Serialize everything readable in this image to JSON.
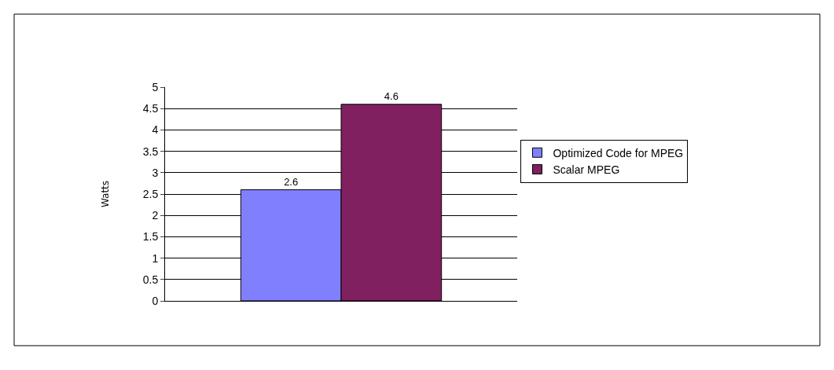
{
  "chart_data": {
    "type": "bar",
    "categories": [
      null
    ],
    "ylabel": "Watts",
    "series": [
      {
        "name": "Optimized Code for MPEG",
        "color": "#8080ff",
        "values": [
          2.6
        ]
      },
      {
        "name": "Scalar MPEG",
        "color": "#802060",
        "values": [
          4.6
        ]
      }
    ],
    "ylim": [
      0,
      5
    ],
    "yticks": [
      0,
      0.5,
      1,
      1.5,
      2,
      2.5,
      3,
      3.5,
      4,
      4.5,
      5
    ],
    "grid": "y",
    "legend": "right",
    "data_labels": true,
    "tick_labels": "y"
  }
}
